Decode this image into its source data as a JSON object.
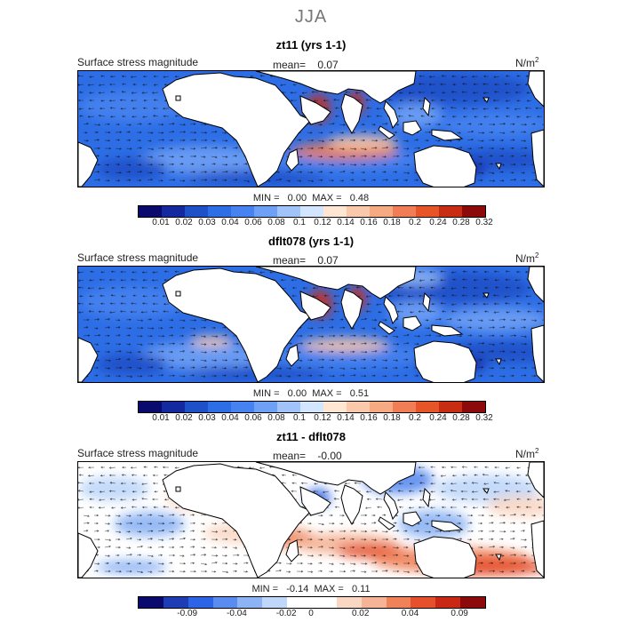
{
  "figure": {
    "title": "JJA"
  },
  "panels": [
    {
      "title": "zt11 (yrs 1-1)",
      "label": "Surface stress magnitude",
      "mean_label": "mean=",
      "mean_value": "0.07",
      "units": "N/m",
      "units_exp": "2",
      "min_label": "MIN =",
      "min_value": "0.00",
      "max_label": "MAX =",
      "max_value": "0.48"
    },
    {
      "title": "dflt078 (yrs 1-1)",
      "label": "Surface stress magnitude",
      "mean_label": "mean=",
      "mean_value": "0.07",
      "units": "N/m",
      "units_exp": "2",
      "min_label": "MIN =",
      "min_value": "0.00",
      "max_label": "MAX =",
      "max_value": "0.51"
    },
    {
      "title": "zt11 - dflt078",
      "label": "Surface stress magnitude",
      "mean_label": "mean=",
      "mean_value": "-0.00",
      "units": "N/m",
      "units_exp": "2",
      "min_label": "MIN =",
      "min_value": "-0.14",
      "max_label": "MAX =",
      "max_value": "0.11"
    }
  ],
  "chart_data": [
    {
      "type": "heatmap",
      "title": "zt11 (yrs 1-1)",
      "variable": "Surface stress magnitude",
      "units": "N/m2",
      "mean": 0.07,
      "min": 0.0,
      "max": 0.48,
      "colorbar_levels": [
        0.01,
        0.02,
        0.03,
        0.04,
        0.06,
        0.08,
        0.1,
        0.12,
        0.14,
        0.16,
        0.18,
        0.2,
        0.24,
        0.28,
        0.32
      ],
      "colorbar_tick_labels": [
        "0.01",
        "0.02",
        "0.03",
        "0.04",
        "0.06",
        "0.08",
        "0.1",
        "0.12",
        "0.14",
        "0.16",
        "0.18",
        "0.2",
        "0.24",
        "0.28",
        "0.32"
      ]
    },
    {
      "type": "heatmap",
      "title": "dflt078 (yrs 1-1)",
      "variable": "Surface stress magnitude",
      "units": "N/m2",
      "mean": 0.07,
      "min": 0.0,
      "max": 0.51,
      "colorbar_levels": [
        0.01,
        0.02,
        0.03,
        0.04,
        0.06,
        0.08,
        0.1,
        0.12,
        0.14,
        0.16,
        0.18,
        0.2,
        0.24,
        0.28,
        0.32
      ],
      "colorbar_tick_labels": [
        "0.01",
        "0.02",
        "0.03",
        "0.04",
        "0.06",
        "0.08",
        "0.1",
        "0.12",
        "0.14",
        "0.16",
        "0.18",
        "0.2",
        "0.24",
        "0.28",
        "0.32"
      ]
    },
    {
      "type": "heatmap",
      "title": "zt11 - dflt078",
      "variable": "Surface stress magnitude",
      "units": "N/m2",
      "mean": -0.0,
      "min": -0.14,
      "max": 0.11,
      "colorbar_levels": [
        -0.09,
        -0.04,
        -0.02,
        0,
        0.02,
        0.04,
        0.09
      ],
      "colorbar_tick_labels": [
        "-0.09",
        "-0.04",
        "-0.02",
        "0",
        "0.02",
        "0.04",
        "0.09"
      ]
    }
  ],
  "colors": {
    "seq": [
      "#0a0a6e",
      "#1428a0",
      "#1e50c8",
      "#2d6ee6",
      "#4682f0",
      "#6ea0f5",
      "#a0c3fa",
      "#d2e6ff",
      "#ffe6d2",
      "#fac8aa",
      "#f5aa82",
      "#f07d55",
      "#e65528",
      "#c82d14",
      "#8c0a0a"
    ],
    "div": [
      "#0a0a6e",
      "#1e3cb4",
      "#2d64e6",
      "#5a8cf0",
      "#8cb4f5",
      "#bed7fa",
      "#ffffff",
      "#ffffff",
      "#fad7c3",
      "#f5b496",
      "#f0825a",
      "#e6502d",
      "#c82814",
      "#8c0a0a"
    ],
    "land": "#ffffff",
    "coast": "#000000"
  }
}
